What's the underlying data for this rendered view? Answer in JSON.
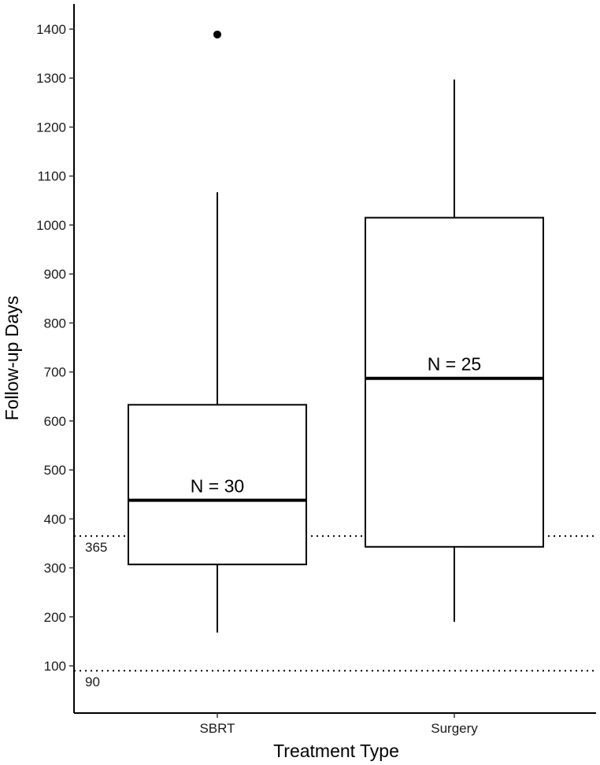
{
  "chart_data": {
    "type": "boxplot",
    "xlabel": "Treatment Type",
    "ylabel": "Follow-up Days",
    "ylim": [
      0,
      1450
    ],
    "y_ticks": [
      100,
      200,
      300,
      400,
      500,
      600,
      700,
      800,
      900,
      1000,
      1100,
      1200,
      1300,
      1400
    ],
    "grid": false,
    "categories": [
      "SBRT",
      "Surgery"
    ],
    "boxes": [
      {
        "category": "SBRT",
        "whisker_low": 168,
        "q1": 307,
        "median": 438,
        "q3": 633,
        "whisker_high": 1067,
        "outliers": [
          1389
        ],
        "label": "N = 30"
      },
      {
        "category": "Surgery",
        "whisker_low": 190,
        "q1": 343,
        "median": 687,
        "q3": 1015,
        "whisker_high": 1297,
        "outliers": [],
        "label": "N = 25"
      }
    ],
    "reference_lines": [
      {
        "value": 365,
        "label": "365",
        "style": "dotted"
      },
      {
        "value": 90,
        "label": "90",
        "style": "dotted"
      }
    ]
  }
}
